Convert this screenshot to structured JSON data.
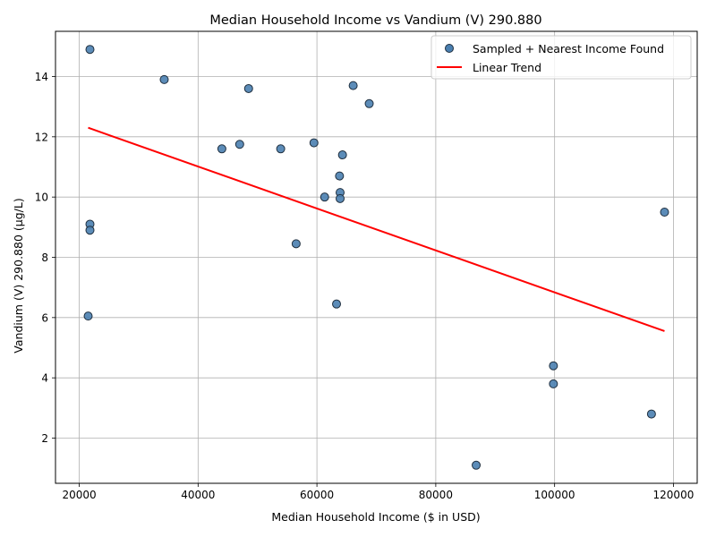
{
  "chart_data": {
    "type": "scatter",
    "title": "Median Household Income vs Vandium (V) 290.880",
    "xlabel": "Median Household Income ($ in USD)",
    "ylabel": "Vandium (V) 290.880 (µg/L)",
    "xlim": [
      16000,
      124000
    ],
    "ylim": [
      0.5,
      15.5
    ],
    "xticks": [
      20000,
      40000,
      60000,
      80000,
      100000,
      120000
    ],
    "yticks": [
      2,
      4,
      6,
      8,
      10,
      12,
      14
    ],
    "grid": true,
    "legend_position": "top-right",
    "series": [
      {
        "name": "Sampled + Nearest Income Found",
        "kind": "scatter",
        "color": "#4a7fb0",
        "edge_color": "#1f2f3f",
        "points": [
          {
            "x": 21800,
            "y": 14.9
          },
          {
            "x": 34300,
            "y": 13.9
          },
          {
            "x": 48500,
            "y": 13.6
          },
          {
            "x": 66100,
            "y": 13.7
          },
          {
            "x": 68800,
            "y": 13.1
          },
          {
            "x": 44000,
            "y": 11.6
          },
          {
            "x": 47000,
            "y": 11.75
          },
          {
            "x": 53900,
            "y": 11.6
          },
          {
            "x": 59500,
            "y": 11.8
          },
          {
            "x": 64300,
            "y": 11.4
          },
          {
            "x": 63800,
            "y": 10.7
          },
          {
            "x": 63900,
            "y": 10.15
          },
          {
            "x": 61300,
            "y": 10.0
          },
          {
            "x": 63900,
            "y": 9.95
          },
          {
            "x": 118500,
            "y": 9.5
          },
          {
            "x": 21800,
            "y": 9.1
          },
          {
            "x": 21800,
            "y": 8.9
          },
          {
            "x": 56500,
            "y": 8.45
          },
          {
            "x": 63300,
            "y": 6.45
          },
          {
            "x": 21500,
            "y": 6.05
          },
          {
            "x": 99800,
            "y": 4.4
          },
          {
            "x": 99800,
            "y": 3.8
          },
          {
            "x": 116300,
            "y": 2.8
          },
          {
            "x": 86800,
            "y": 1.1
          }
        ]
      },
      {
        "name": "Linear Trend",
        "kind": "line",
        "color": "#ff0000",
        "points": [
          {
            "x": 21500,
            "y": 12.3
          },
          {
            "x": 118500,
            "y": 5.55
          }
        ]
      }
    ]
  }
}
